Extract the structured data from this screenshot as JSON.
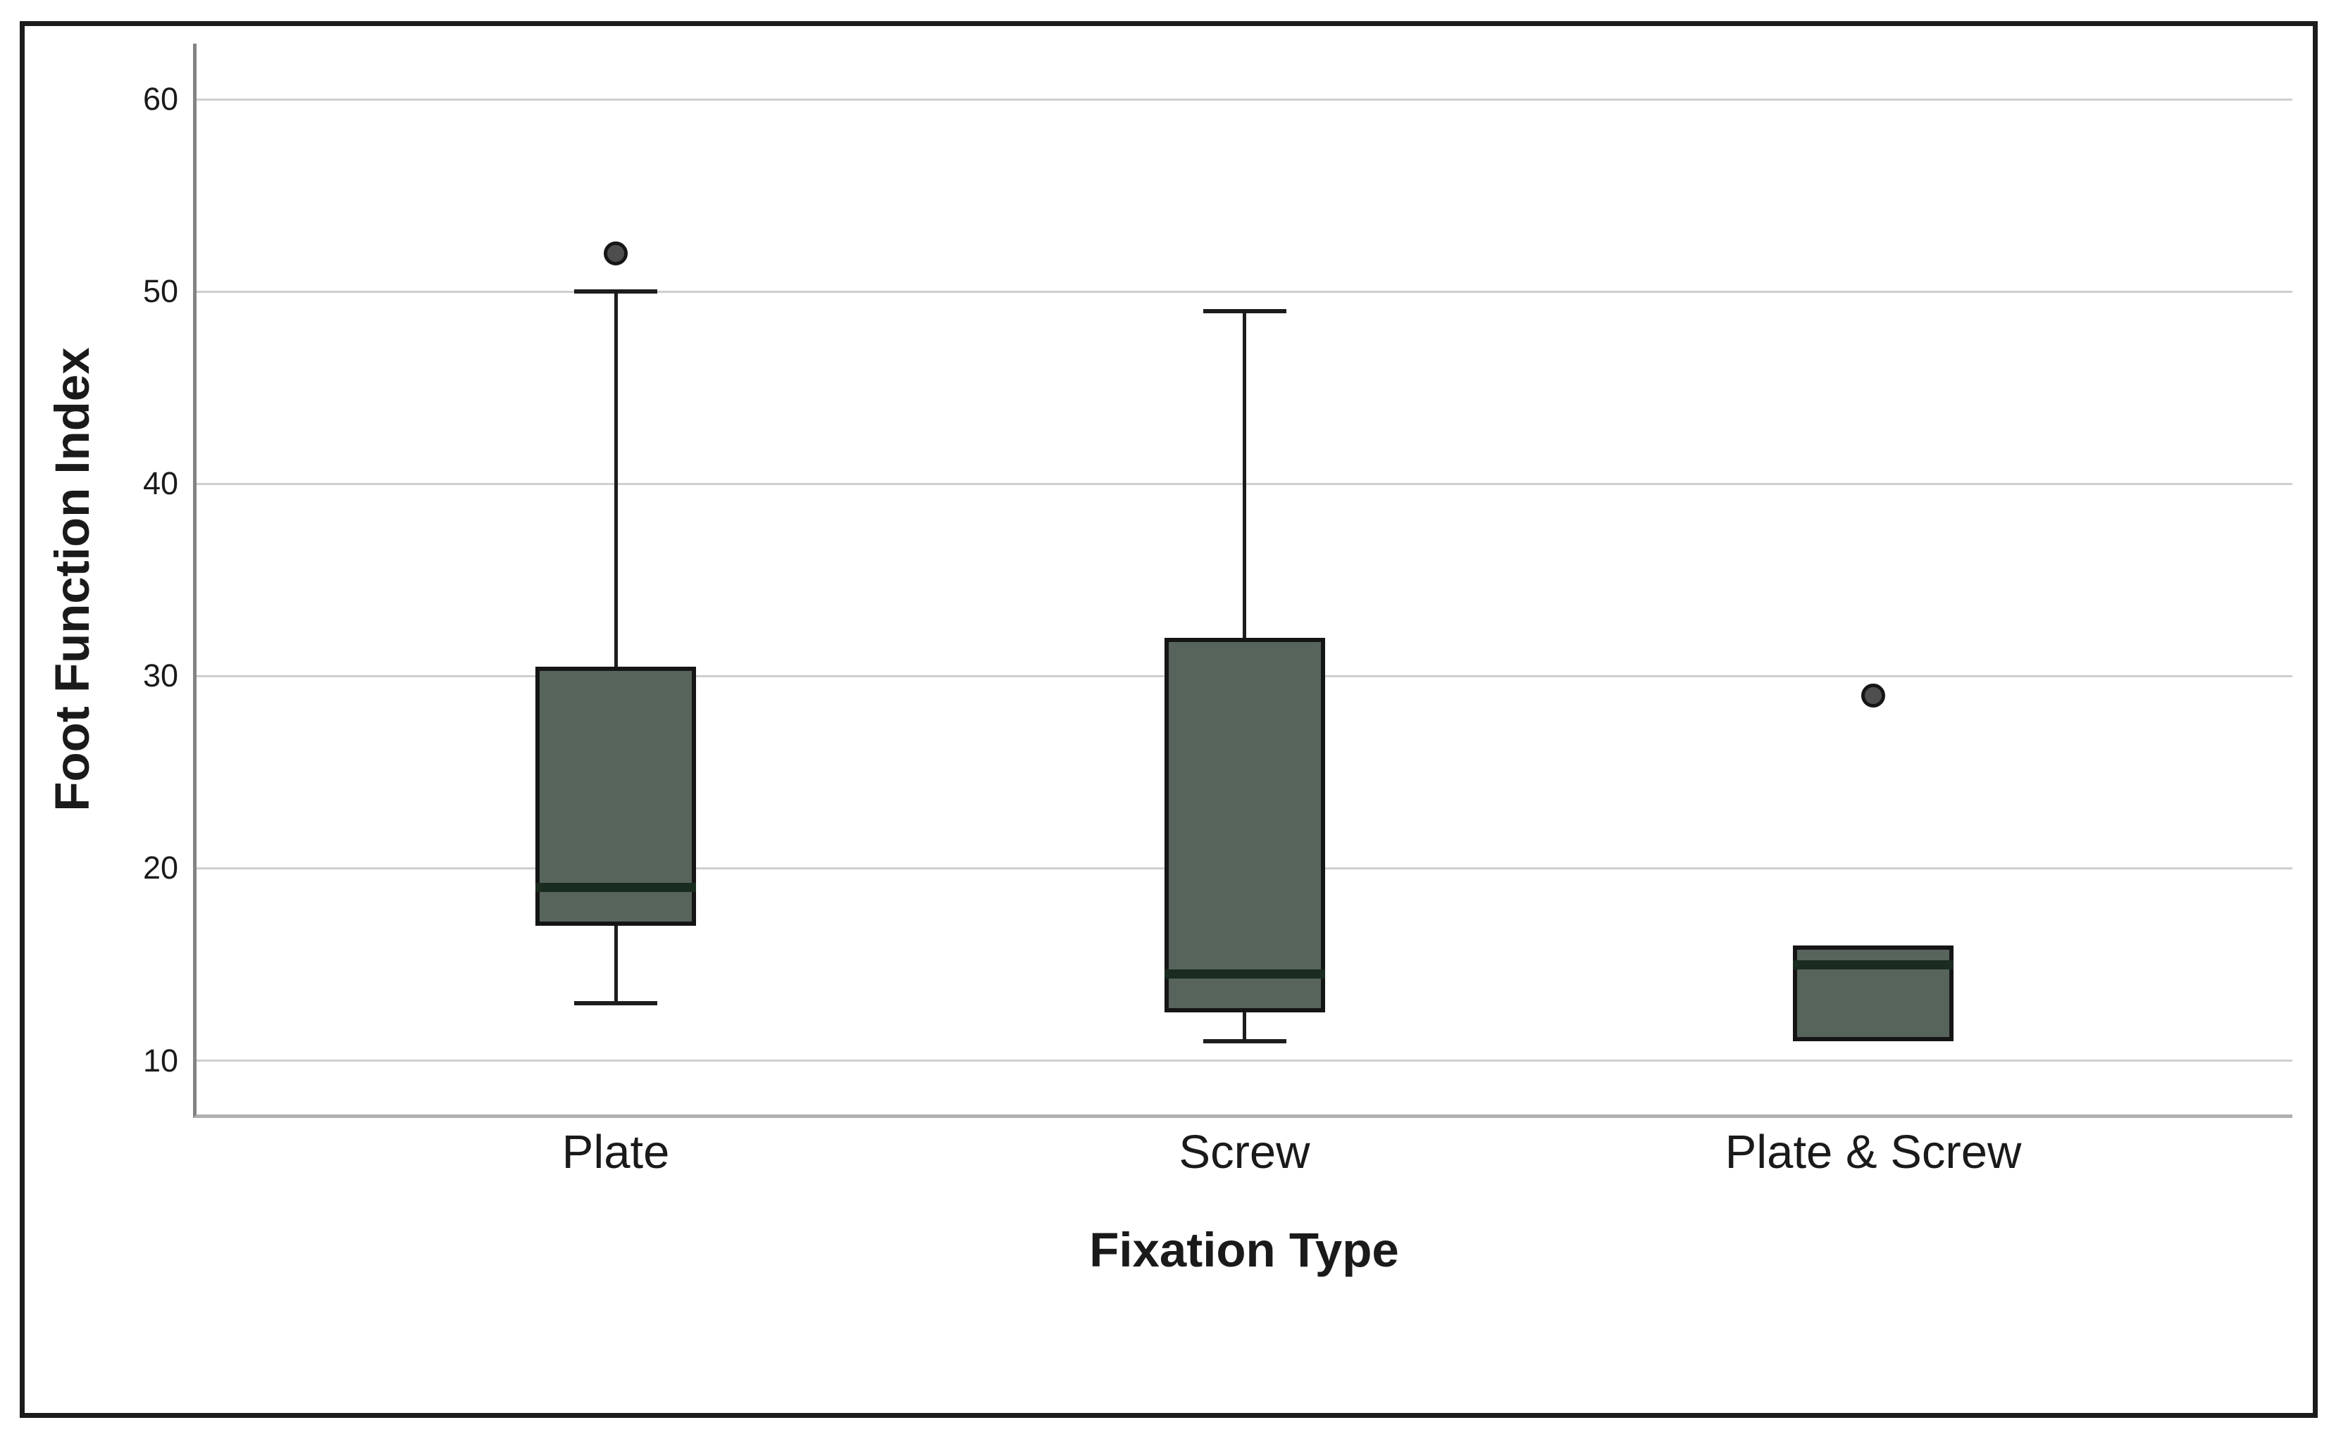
{
  "figure": {
    "background": "#ffffff",
    "frame_color": "#1c1c1c"
  },
  "chart_data": {
    "type": "box",
    "title": "",
    "xlabel": "Fixation Type",
    "ylabel": "Foot Function Index",
    "categories": [
      "Plate",
      "Screw",
      "Plate & Screw"
    ],
    "y_ticks": [
      60,
      50,
      40,
      30,
      20,
      10
    ],
    "ylim": [
      7.2,
      62.9
    ],
    "grid": "horizontal gridlines at each y tick",
    "legend": "none",
    "series": [
      {
        "category": "Plate",
        "whisker_low": 13,
        "q1": 17,
        "median": 19,
        "q3": 30.5,
        "whisker_high": 50,
        "outliers": [
          52
        ]
      },
      {
        "category": "Screw",
        "whisker_low": 11,
        "q1": 12.5,
        "median": 14.5,
        "q3": 32,
        "whisker_high": 49,
        "outliers": []
      },
      {
        "category": "Plate & Screw",
        "whisker_low": 11,
        "q1": 11,
        "median": 15,
        "q3": 16,
        "whisker_high": 16,
        "outliers": [
          29
        ]
      }
    ],
    "colors": {
      "box_fill": "#57645c",
      "box_border": "#151515",
      "median_line": "#1a2b20",
      "whisker": "#1d1d1d",
      "outlier_fill": "#4e4e4e",
      "outlier_border": "#161616",
      "gridline": "#cfcfcf",
      "y_axis_line": "#838383",
      "x_axis_line": "#b0b0b0",
      "text": "#1a1a1a"
    }
  }
}
